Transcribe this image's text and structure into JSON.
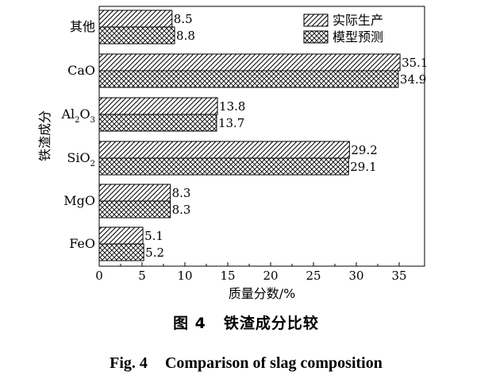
{
  "chart_data": {
    "type": "bar",
    "orientation": "horizontal",
    "categories": [
      "其他",
      "CaO",
      "Al2O3",
      "SiO2",
      "MgO",
      "FeO"
    ],
    "category_labels": [
      {
        "base": "其他"
      },
      {
        "base": "CaO"
      },
      {
        "base": "Al",
        "sub1": "2",
        "mid": "O",
        "sub2": "3"
      },
      {
        "base": "SiO",
        "sub1": "2"
      },
      {
        "base": "MgO"
      },
      {
        "base": "FeO"
      }
    ],
    "series": [
      {
        "name": "实际生产",
        "pattern": "diagonal",
        "values": [
          8.5,
          35.1,
          13.8,
          29.2,
          8.3,
          5.1
        ]
      },
      {
        "name": "模型预测",
        "pattern": "crosshatch",
        "values": [
          8.8,
          34.9,
          13.7,
          29.1,
          8.3,
          5.2
        ]
      }
    ],
    "value_labels": [
      [
        "8.5",
        "35.1",
        "13.8",
        "29.2",
        "8.3",
        "5.1"
      ],
      [
        "8.8",
        "34.9",
        "13.7",
        "29.1",
        "8.3",
        "5.2"
      ]
    ],
    "xlabel": "质量分数/%",
    "ylabel": "铁渣成分",
    "xlim": [
      0,
      37
    ],
    "xticks": [
      0,
      5,
      10,
      15,
      20,
      25,
      30,
      35
    ],
    "xtick_labels": [
      "0",
      "5",
      "10",
      "15",
      "20",
      "25",
      "30",
      "35"
    ],
    "legend_position": "top-right",
    "grid": false
  },
  "caption": {
    "cn_label": "图 4",
    "cn_title": "铁渣成分比较",
    "en_label": "Fig. 4",
    "en_title": "Comparison of slag composition"
  }
}
